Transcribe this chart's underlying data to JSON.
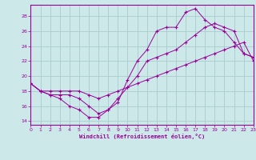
{
  "xlabel": "Windchill (Refroidissement éolien,°C)",
  "bg_color": "#cce8e8",
  "line_color": "#990099",
  "grid_color": "#aacccc",
  "series1_x": [
    0,
    1,
    2,
    3,
    4,
    5,
    6,
    7,
    8,
    9,
    10,
    11,
    12,
    13,
    14,
    15,
    16,
    17,
    18,
    19,
    20,
    21,
    22,
    23
  ],
  "series1_y": [
    19.0,
    18.0,
    17.5,
    17.0,
    16.0,
    15.5,
    14.5,
    14.5,
    15.5,
    16.5,
    19.5,
    22.0,
    23.5,
    26.0,
    26.5,
    26.5,
    28.5,
    29.0,
    27.5,
    26.5,
    26.0,
    24.5,
    23.0,
    22.5
  ],
  "series2_x": [
    0,
    1,
    2,
    3,
    4,
    5,
    6,
    7,
    8,
    9,
    10,
    11,
    12,
    13,
    14,
    15,
    16,
    17,
    18,
    19,
    20,
    21,
    22,
    23
  ],
  "series2_y": [
    19.0,
    18.0,
    17.5,
    17.5,
    17.5,
    17.0,
    16.0,
    15.0,
    15.5,
    17.0,
    18.5,
    20.0,
    22.0,
    22.5,
    23.0,
    23.5,
    24.5,
    25.5,
    26.5,
    27.0,
    26.5,
    26.0,
    23.0,
    22.5
  ],
  "series3_x": [
    0,
    1,
    2,
    3,
    4,
    5,
    6,
    7,
    8,
    9,
    10,
    11,
    12,
    13,
    14,
    15,
    16,
    17,
    18,
    19,
    20,
    21,
    22,
    23
  ],
  "series3_y": [
    19.0,
    18.0,
    18.0,
    18.0,
    18.0,
    18.0,
    17.5,
    17.0,
    17.5,
    18.0,
    18.5,
    19.0,
    19.5,
    20.0,
    20.5,
    21.0,
    21.5,
    22.0,
    22.5,
    23.0,
    23.5,
    24.0,
    24.5,
    22.0
  ],
  "xlim": [
    0,
    23
  ],
  "ylim": [
    13.5,
    29.5
  ],
  "yticks": [
    14,
    16,
    18,
    20,
    22,
    24,
    26,
    28
  ],
  "xticks": [
    0,
    1,
    2,
    3,
    4,
    5,
    6,
    7,
    8,
    9,
    10,
    11,
    12,
    13,
    14,
    15,
    16,
    17,
    18,
    19,
    20,
    21,
    22,
    23
  ]
}
